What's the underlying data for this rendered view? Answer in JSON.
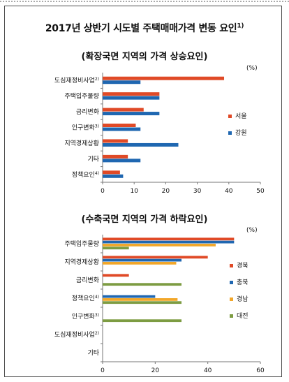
{
  "header": {
    "title": "2017년 상반기 시도별 주택매매가격 변동 요인",
    "title_sup": "1)"
  },
  "colors": {
    "red": "#e04a27",
    "blue": "#1f67b1",
    "yellow": "#f2a72a",
    "green": "#7d9c42",
    "axis": "#777777"
  },
  "chart_data": [
    {
      "type": "bar",
      "orientation": "horizontal",
      "title": "(확장국면 지역의 가격 상승요인)",
      "unit": "(%)",
      "categories": [
        {
          "label": "도심재정비사업",
          "sup": "2)"
        },
        {
          "label": "주택입주물량",
          "sup": ""
        },
        {
          "label": "금리변화",
          "sup": ""
        },
        {
          "label": "인구변화",
          "sup": "3)"
        },
        {
          "label": "지역경제상황",
          "sup": ""
        },
        {
          "label": "기타",
          "sup": ""
        },
        {
          "label": "정책요인",
          "sup": "4)"
        }
      ],
      "series": [
        {
          "name": "서울",
          "color": "#e04a27",
          "values": [
            38.5,
            18,
            13,
            10.5,
            8,
            8,
            5.5
          ]
        },
        {
          "name": "강원",
          "color": "#1f67b1",
          "values": [
            12,
            18,
            18,
            12,
            24,
            12,
            6.5
          ]
        }
      ],
      "xlim": [
        0,
        50
      ],
      "xticks": [
        0,
        10,
        20,
        30,
        40,
        50
      ],
      "legend_position": "right"
    },
    {
      "type": "bar",
      "orientation": "horizontal",
      "title": "(수축국면 지역의 가격 하락요인)",
      "unit": "(%)",
      "categories": [
        {
          "label": "주택입주물량",
          "sup": ""
        },
        {
          "label": "지역경제상황",
          "sup": ""
        },
        {
          "label": "금리변화",
          "sup": ""
        },
        {
          "label": "정책요인",
          "sup": "4)"
        },
        {
          "label": "인구변화",
          "sup": "3)"
        },
        {
          "label": "도심재정비사업",
          "sup": "2)"
        },
        {
          "label": "기타",
          "sup": ""
        }
      ],
      "series": [
        {
          "name": "경북",
          "color": "#e04a27",
          "values": [
            50,
            40,
            10,
            0,
            0,
            0,
            0
          ]
        },
        {
          "name": "충북",
          "color": "#1f67b1",
          "values": [
            50,
            30,
            0,
            20,
            0,
            0,
            0
          ]
        },
        {
          "name": "경남",
          "color": "#f2a72a",
          "values": [
            43,
            28,
            0,
            28.5,
            0,
            0,
            0
          ]
        },
        {
          "name": "대전",
          "color": "#7d9c42",
          "values": [
            10,
            0,
            30,
            30,
            30,
            0,
            0
          ]
        }
      ],
      "xlim": [
        0,
        60
      ],
      "xticks": [
        0,
        20,
        40,
        60
      ],
      "legend_position": "right"
    }
  ]
}
